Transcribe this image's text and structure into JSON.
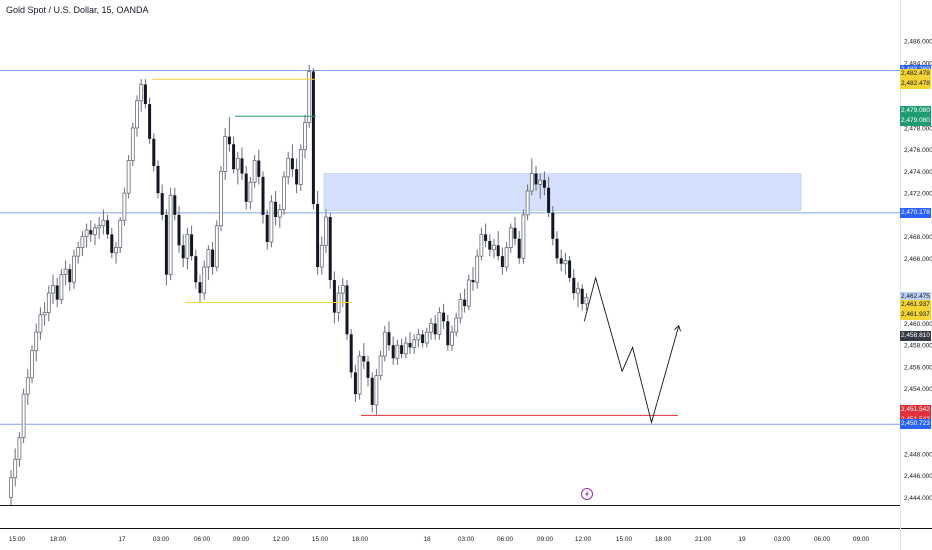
{
  "header": {
    "title": "Gold Spot / U.S. Dollar, 15, OANDA"
  },
  "colors": {
    "up": "#089981",
    "down": "#131722",
    "hline": "#7fa7e8",
    "zone": "#c5d6fb",
    "yellow": "#f6d433",
    "green": "#1e9b6f",
    "red": "#e0313b"
  },
  "price_axis": {
    "ticks": [
      "2,486.000",
      "2,484.000",
      "2,478.000",
      "2,476.000",
      "2,474.000",
      "2,472.000",
      "2,468.000",
      "2,466.000",
      "2,460.000",
      "2,458.000",
      "2,456.000",
      "2,454.000",
      "2,448.000",
      "2,446.000",
      "2,444.000"
    ],
    "tick_values": [
      2486,
      2484,
      2478,
      2476,
      2474,
      2472,
      2468,
      2466,
      2460,
      2458,
      2456,
      2454,
      2448,
      2446,
      2444
    ]
  },
  "price_tags": [
    {
      "label": "2,483.289",
      "value": 2483.289,
      "bg": "#2962ff",
      "fg": "#ffffff"
    },
    {
      "label": "2,482.478",
      "value": 2482.478,
      "bg": "#f6d433",
      "fg": "#131722",
      "offset": -5
    },
    {
      "label": "2,482.478",
      "value": 2482.478,
      "bg": "#f6d433",
      "fg": "#131722",
      "offset": 5
    },
    {
      "label": "2,479.080",
      "value": 2479.08,
      "bg": "#1e9b6f",
      "fg": "#ffffff",
      "offset": -5
    },
    {
      "label": "2,479.080",
      "value": 2479.08,
      "bg": "#1e9b6f",
      "fg": "#ffffff",
      "offset": 5
    },
    {
      "label": "2,470.178",
      "value": 2470.178,
      "bg": "#2962ff",
      "fg": "#ffffff"
    },
    {
      "label": "2,462.475",
      "value": 2462.475,
      "bg": "#bbd0f2",
      "fg": "#131722",
      "offset": 0
    },
    {
      "label": "06:54",
      "value": 2461.3,
      "bg": "#bbd0f2",
      "fg": "#131722",
      "offset": 2
    },
    {
      "label": "2,461.937",
      "value": 2461.937,
      "bg": "#f6d433",
      "fg": "#131722",
      "offset": 3
    },
    {
      "label": "2,461.937",
      "value": 2461.937,
      "bg": "#f6d433",
      "fg": "#131722",
      "offset": 13
    },
    {
      "label": "2,458.810",
      "value": 2458.81,
      "bg": "#363a45",
      "fg": "#ffffff"
    },
    {
      "label": "2,451.542",
      "value": 2451.542,
      "bg": "#e0313b",
      "fg": "#ffffff",
      "offset": -5
    },
    {
      "label": "2,451.542",
      "value": 2451.542,
      "bg": "#e0313b",
      "fg": "#ffffff",
      "offset": 5
    },
    {
      "label": "2,450.723",
      "value": 2450.723,
      "bg": "#2962ff",
      "fg": "#ffffff"
    }
  ],
  "time_axis": {
    "labels": [
      {
        "t": "15:00",
        "x": 17
      },
      {
        "t": "18:00",
        "x": 58
      },
      {
        "t": "17",
        "x": 122
      },
      {
        "t": "03:00",
        "x": 161
      },
      {
        "t": "06:00",
        "x": 202
      },
      {
        "t": "09:00",
        "x": 241
      },
      {
        "t": "12:00",
        "x": 281
      },
      {
        "t": "15:00",
        "x": 320
      },
      {
        "t": "18:00",
        "x": 360
      },
      {
        "t": "18",
        "x": 427
      },
      {
        "t": "03:00",
        "x": 466
      },
      {
        "t": "06:00",
        "x": 505
      },
      {
        "t": "09:00",
        "x": 545
      },
      {
        "t": "12:00",
        "x": 583
      },
      {
        "t": "15:00",
        "x": 624
      },
      {
        "t": "18:00",
        "x": 663
      },
      {
        "t": "21:00",
        "x": 703
      },
      {
        "t": "19",
        "x": 742
      },
      {
        "t": "03:00",
        "x": 782
      },
      {
        "t": "06:00",
        "x": 822
      },
      {
        "t": "09:00",
        "x": 861
      }
    ]
  },
  "levels": {
    "resistance_top": 2483.289,
    "zone_mid": 2470.178,
    "support_low": 2450.723,
    "zone_top": 2473.8,
    "zone_bottom": 2470.4,
    "yellow_high": 2482.478,
    "green_mid": 2479.08,
    "yellow_low": 2461.937,
    "red_low": 2451.542
  },
  "chart_data": {
    "type": "candlestick",
    "symbol": "Gold Spot / U.S. Dollar, 15, OANDA",
    "ylim": [
      2443.2,
      2487.2
    ],
    "candles": [
      [
        2444,
        2446.5,
        2443.2,
        2445.8
      ],
      [
        2445.8,
        2448.5,
        2445,
        2447.5
      ],
      [
        2447.5,
        2450,
        2446.8,
        2449.5
      ],
      [
        2449.5,
        2454,
        2449,
        2453.5
      ],
      [
        2453.5,
        2455.8,
        2452.5,
        2455
      ],
      [
        2455,
        2458,
        2454.5,
        2457.5
      ],
      [
        2457.5,
        2460,
        2456.5,
        2459.2
      ],
      [
        2459.2,
        2461.5,
        2458.5,
        2460.8
      ],
      [
        2460.8,
        2462,
        2459.8,
        2461
      ],
      [
        2461,
        2463.5,
        2460.2,
        2462.8
      ],
      [
        2462.8,
        2464.5,
        2461.8,
        2463.5
      ],
      [
        2463.5,
        2464.2,
        2461.5,
        2462.2
      ],
      [
        2462.2,
        2465,
        2461.8,
        2464.5
      ],
      [
        2464.5,
        2465.8,
        2463.5,
        2465
      ],
      [
        2465,
        2465.5,
        2463,
        2463.8
      ],
      [
        2463.8,
        2466.8,
        2463.2,
        2466.2
      ],
      [
        2466.2,
        2467.5,
        2465.5,
        2467
      ],
      [
        2467,
        2468.5,
        2466.2,
        2468
      ],
      [
        2468,
        2469.2,
        2467,
        2468.6
      ],
      [
        2468.6,
        2469.5,
        2467.5,
        2468.2
      ],
      [
        2468.2,
        2469.2,
        2467.2,
        2468.8
      ],
      [
        2468.8,
        2469.8,
        2467.8,
        2469
      ],
      [
        2469,
        2470.5,
        2468.2,
        2469.5
      ],
      [
        2469.5,
        2470,
        2467.8,
        2468.2
      ],
      [
        2468.2,
        2468.8,
        2466,
        2466.5
      ],
      [
        2466.5,
        2467.5,
        2465.5,
        2467
      ],
      [
        2467,
        2469.8,
        2466.5,
        2469.5
      ],
      [
        2469.5,
        2472.5,
        2469,
        2472
      ],
      [
        2472,
        2475.5,
        2471.5,
        2475
      ],
      [
        2475,
        2478.5,
        2474.5,
        2478
      ],
      [
        2478,
        2481,
        2477.2,
        2480.5
      ],
      [
        2480.5,
        2482.5,
        2479.5,
        2482
      ],
      [
        2482,
        2482.5,
        2479.8,
        2480.2
      ],
      [
        2480.2,
        2480.8,
        2476.5,
        2477
      ],
      [
        2477,
        2477.5,
        2474,
        2474.5
      ],
      [
        2474.5,
        2475,
        2471.5,
        2472
      ],
      [
        2472,
        2472.8,
        2469.5,
        2470
      ],
      [
        2470,
        2470.5,
        2463.5,
        2464.5
      ],
      [
        2464.5,
        2472.5,
        2464,
        2471.8
      ],
      [
        2471.8,
        2472.5,
        2469.5,
        2470
      ],
      [
        2470,
        2470.8,
        2466.5,
        2467.2
      ],
      [
        2467.2,
        2468.2,
        2465.2,
        2466
      ],
      [
        2466,
        2468.8,
        2465,
        2468.2
      ],
      [
        2468.2,
        2469,
        2465.8,
        2466.2
      ],
      [
        2466.2,
        2466.8,
        2463.2,
        2463.8
      ],
      [
        2463.8,
        2464.5,
        2461.9,
        2462.8
      ],
      [
        2462.8,
        2465.8,
        2462.2,
        2465.2
      ],
      [
        2465.2,
        2467.2,
        2464,
        2466.8
      ],
      [
        2466.8,
        2467.5,
        2464.5,
        2465.2
      ],
      [
        2465.2,
        2469.5,
        2464.8,
        2469
      ],
      [
        2469,
        2474.5,
        2468.5,
        2474
      ],
      [
        2474,
        2478,
        2473.2,
        2477.2
      ],
      [
        2477.2,
        2479,
        2475.8,
        2476.5
      ],
      [
        2476.5,
        2477.2,
        2473.8,
        2474.2
      ],
      [
        2474.2,
        2475.8,
        2472.8,
        2475.2
      ],
      [
        2475.2,
        2476.2,
        2473.2,
        2473.8
      ],
      [
        2473.8,
        2474.5,
        2470.5,
        2471.2
      ],
      [
        2471.2,
        2473.5,
        2470.5,
        2473
      ],
      [
        2473,
        2475.5,
        2472.5,
        2475
      ],
      [
        2475,
        2476,
        2472.8,
        2473.5
      ],
      [
        2473.5,
        2474,
        2469.2,
        2470
      ],
      [
        2470,
        2470.5,
        2466.8,
        2467.5
      ],
      [
        2467.5,
        2471.8,
        2467,
        2471.2
      ],
      [
        2471.2,
        2472.2,
        2469,
        2469.8
      ],
      [
        2469.8,
        2471,
        2468.8,
        2470.5
      ],
      [
        2470.5,
        2474,
        2470,
        2473.5
      ],
      [
        2473.5,
        2475.8,
        2472.8,
        2475.2
      ],
      [
        2475.2,
        2476.5,
        2473.5,
        2474.2
      ],
      [
        2474.2,
        2475.2,
        2472,
        2472.8
      ],
      [
        2472.8,
        2476.5,
        2472.2,
        2476
      ],
      [
        2476,
        2479.2,
        2475.2,
        2478.5
      ],
      [
        2478.5,
        2483.8,
        2478,
        2483.2
      ],
      [
        2483.2,
        2483.5,
        2470.5,
        2471
      ],
      [
        2471,
        2472.2,
        2464.5,
        2465.2
      ],
      [
        2465.2,
        2468,
        2464.5,
        2467.2
      ],
      [
        2467.2,
        2470.5,
        2466.5,
        2469.8
      ],
      [
        2469.8,
        2470.2,
        2463.2,
        2464
      ],
      [
        2464,
        2464.8,
        2460,
        2461
      ],
      [
        2461,
        2463.5,
        2460.2,
        2462.8
      ],
      [
        2462.8,
        2464.2,
        2461.5,
        2463.5
      ],
      [
        2463.5,
        2464,
        2458.5,
        2459
      ],
      [
        2459,
        2459.5,
        2455,
        2455.5
      ],
      [
        2455.5,
        2456.2,
        2452.8,
        2453.5
      ],
      [
        2453.5,
        2457.5,
        2453,
        2457
      ],
      [
        2457,
        2458.2,
        2455.8,
        2456.5
      ],
      [
        2456.5,
        2457,
        2454.2,
        2455
      ],
      [
        2455,
        2455.5,
        2451.8,
        2452.5
      ],
      [
        2452.5,
        2455.8,
        2451.6,
        2455.2
      ],
      [
        2455.2,
        2457.5,
        2454.8,
        2457
      ],
      [
        2457,
        2459.8,
        2456.5,
        2459.2
      ],
      [
        2459.2,
        2460.2,
        2457.5,
        2458
      ],
      [
        2458,
        2458.8,
        2456.2,
        2456.8
      ],
      [
        2456.8,
        2458.5,
        2456.2,
        2458
      ],
      [
        2458,
        2458.6,
        2456.8,
        2457.2
      ],
      [
        2457.2,
        2458.8,
        2456.8,
        2458.2
      ],
      [
        2458.2,
        2459.2,
        2457.2,
        2457.8
      ],
      [
        2457.8,
        2459,
        2457.2,
        2458.5
      ],
      [
        2458.5,
        2459.5,
        2457.8,
        2459
      ],
      [
        2459,
        2459.4,
        2457.8,
        2458.2
      ],
      [
        2458.2,
        2459.6,
        2457.8,
        2459.2
      ],
      [
        2459.2,
        2460.5,
        2458.5,
        2460
      ],
      [
        2460,
        2460.8,
        2458.5,
        2459
      ],
      [
        2459,
        2461.5,
        2458.5,
        2461
      ],
      [
        2461,
        2461.8,
        2459.5,
        2460.2
      ],
      [
        2460.2,
        2460.8,
        2457.5,
        2458
      ],
      [
        2458,
        2459.8,
        2457.5,
        2459.2
      ],
      [
        2459.2,
        2461,
        2458.8,
        2460.5
      ],
      [
        2460.5,
        2462.8,
        2460,
        2462.2
      ],
      [
        2462.2,
        2463.2,
        2461,
        2461.6
      ],
      [
        2461.6,
        2464.5,
        2461.2,
        2464
      ],
      [
        2464,
        2465.2,
        2463,
        2463.8
      ],
      [
        2463.8,
        2466.8,
        2463.2,
        2466.2
      ],
      [
        2466.2,
        2468.8,
        2465.8,
        2468.2
      ],
      [
        2468.2,
        2469.2,
        2467,
        2467.6
      ],
      [
        2467.6,
        2468.2,
        2466.2,
        2466.8
      ],
      [
        2466.8,
        2467.8,
        2466,
        2467.2
      ],
      [
        2467.2,
        2468.5,
        2465.8,
        2466.2
      ],
      [
        2466.2,
        2467,
        2464.5,
        2465.2
      ],
      [
        2465.2,
        2467.5,
        2464.8,
        2467
      ],
      [
        2467,
        2469.2,
        2466.5,
        2468.8
      ],
      [
        2468.8,
        2469.8,
        2467.2,
        2467.8
      ],
      [
        2467.8,
        2468.5,
        2465.5,
        2466
      ],
      [
        2466,
        2470.5,
        2465.5,
        2470
      ],
      [
        2470,
        2472.8,
        2469.5,
        2472.2
      ],
      [
        2472.2,
        2475.2,
        2471.8,
        2473.8
      ],
      [
        2473.8,
        2474.5,
        2472.2,
        2472.8
      ],
      [
        2472.8,
        2473.8,
        2471.5,
        2473.2
      ],
      [
        2473.2,
        2474,
        2471.8,
        2472.5
      ],
      [
        2472.5,
        2473.5,
        2469.8,
        2470.2
      ],
      [
        2470.2,
        2470.8,
        2467.2,
        2467.8
      ],
      [
        2467.8,
        2468.5,
        2465.5,
        2466
      ],
      [
        2466,
        2466.8,
        2464.8,
        2465.5
      ],
      [
        2465.5,
        2466.5,
        2464.5,
        2465.8
      ],
      [
        2465.8,
        2466.2,
        2463.8,
        2464.2
      ],
      [
        2464.2,
        2465,
        2462.2,
        2462.8
      ],
      [
        2462.8,
        2463.8,
        2461.5,
        2463.2
      ],
      [
        2463.2,
        2463.6,
        2461.2,
        2461.8
      ],
      [
        2461.8,
        2462.8,
        2461.2,
        2462.4
      ]
    ],
    "projection_path": [
      {
        "bar": 136.5,
        "price": 2460.2
      },
      {
        "bar": 139.2,
        "price": 2464.2
      },
      {
        "bar": 145.5,
        "price": 2455.6
      },
      {
        "bar": 148,
        "price": 2457.8
      },
      {
        "bar": 152.5,
        "price": 2450.9
      },
      {
        "bar": 159,
        "price": 2459.8
      }
    ]
  }
}
